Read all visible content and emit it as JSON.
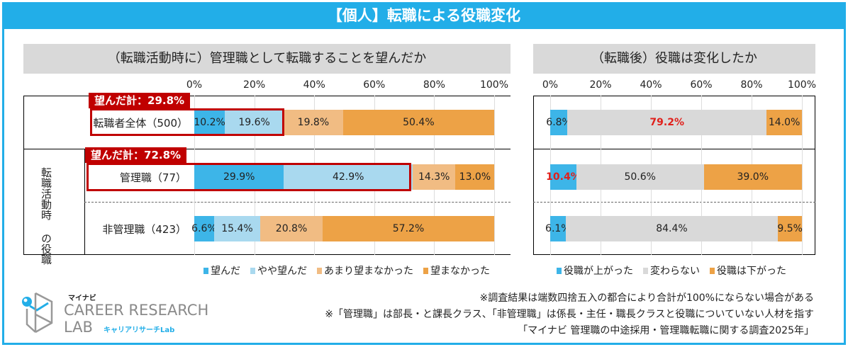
{
  "title": "【個人】転職による役職変化",
  "notes": [
    "※調査結果は端数四捨五入の都合により合計が100%にならない場合がある",
    "※「管理職」は部長・と課長クラス、「非管理職」は係長・主任・職長クラスと役職についていない人材を指す",
    "「マイナビ 管理職の中途採用・管理職転職に関する調査2025年」"
  ],
  "logo": {
    "brand": "マイナビ",
    "name1": "CAREER RESEARCH",
    "name2": "LAB",
    "sub": "キャリアリサーチLab"
  },
  "side_label": {
    "col1": "転職活動時",
    "col2": "の役職"
  },
  "chart_data": [
    {
      "type": "bar",
      "stacked": true,
      "orientation": "horizontal",
      "title": "（転職活動時に）管理職として転職することを望んだか",
      "ticks": [
        "0%",
        "20%",
        "40%",
        "60%",
        "80%",
        "100%"
      ],
      "xlim": [
        0,
        100
      ],
      "categories": [
        "転職者全体（500）",
        "管理職（77）",
        "非管理職（423）"
      ],
      "series": [
        {
          "name": "望んだ",
          "color": "#3db5e8",
          "values": [
            10.2,
            29.9,
            6.6
          ]
        },
        {
          "name": "やや望んだ",
          "color": "#a9d9ef",
          "values": [
            19.6,
            42.9,
            15.4
          ]
        },
        {
          "name": "あまり望まなかった",
          "color": "#f1bc83",
          "values": [
            19.8,
            14.3,
            20.8
          ]
        },
        {
          "name": "望まなかった",
          "color": "#eda246",
          "values": [
            50.4,
            13.0,
            57.2
          ]
        }
      ],
      "labels": [
        [
          "10.2%",
          "19.6%",
          "19.8%",
          "50.4%"
        ],
        [
          "29.9%",
          "42.9%",
          "14.3%",
          "13.0%"
        ],
        [
          "6.6%",
          "15.4%",
          "20.8%",
          "57.2%"
        ]
      ],
      "annotations": [
        "望んだ計：29.8%",
        "望んだ計：72.8%"
      ]
    },
    {
      "type": "bar",
      "stacked": true,
      "orientation": "horizontal",
      "title": "（転職後）役職は変化したか",
      "ticks": [
        "0%",
        "20%",
        "40%",
        "60%",
        "80%",
        "100%"
      ],
      "xlim": [
        0,
        100
      ],
      "categories": [
        "転職者全体（500）",
        "管理職（77）",
        "非管理職（423）"
      ],
      "series": [
        {
          "name": "役職が上がった",
          "color": "#3db5e8",
          "values": [
            6.8,
            10.4,
            6.1
          ]
        },
        {
          "name": "変わらない",
          "color": "#d9d9d9",
          "values": [
            79.2,
            50.6,
            84.4
          ]
        },
        {
          "name": "役職は下がった",
          "color": "#eda246",
          "values": [
            14.0,
            39.0,
            9.5
          ]
        }
      ],
      "labels": [
        [
          "6.8%",
          "79.2%",
          "14.0%"
        ],
        [
          "10.4%",
          "50.6%",
          "39.0%"
        ],
        [
          "6.1%",
          "84.4%",
          "9.5%"
        ]
      ],
      "highlight_color": "#e0201b"
    }
  ]
}
